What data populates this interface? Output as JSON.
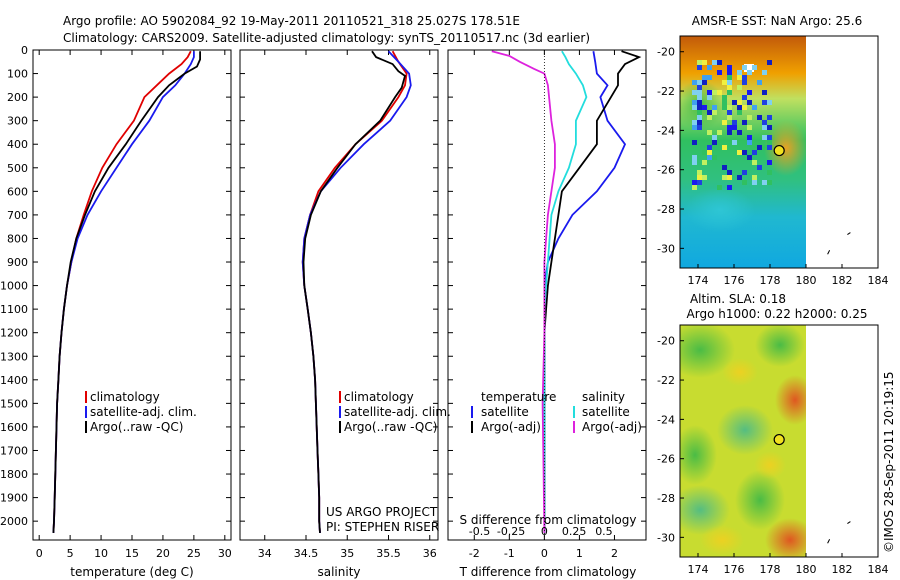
{
  "header": {
    "line1": "Argo profile: AO 5902084_92 19-May-2011 20110521_318 25.027S 178.51E",
    "line2": "Climatology: CARS2009. Satellite-adjusted climatology: synTS_20110517.nc (3d earlier)"
  },
  "credit": "©IMOS 28-Sep-2011 20:19:15",
  "colors": {
    "red": "#e00000",
    "blue": "#1a1aee",
    "black": "#000000",
    "cyan": "#22dddd",
    "magenta": "#dd22dd"
  },
  "chart_data": [
    {
      "type": "line",
      "id": "temperature",
      "xlabel": "temperature (deg C)",
      "ylabel": "",
      "xlim": [
        -1,
        31
      ],
      "ylim": [
        2080,
        0
      ],
      "xticks": [
        0,
        5,
        10,
        15,
        20,
        25,
        30
      ],
      "yticks": [
        0,
        100,
        200,
        300,
        400,
        500,
        600,
        700,
        800,
        900,
        1000,
        1100,
        1200,
        1300,
        1400,
        1500,
        1600,
        1700,
        1800,
        1900,
        2000
      ],
      "legend": [
        "climatology",
        "satellite-adj. clim.",
        "Argo(..raw -QC)"
      ],
      "series": [
        {
          "name": "climatology",
          "color": "red",
          "points": [
            [
              24.5,
              5
            ],
            [
              24,
              30
            ],
            [
              23,
              60
            ],
            [
              21,
              100
            ],
            [
              19,
              150
            ],
            [
              17,
              200
            ],
            [
              15.3,
              300
            ],
            [
              12.5,
              400
            ],
            [
              10.2,
              500
            ],
            [
              8.5,
              600
            ],
            [
              7.2,
              700
            ],
            [
              6,
              800
            ],
            [
              5.2,
              900
            ],
            [
              4.5,
              1000
            ],
            [
              4,
              1100
            ],
            [
              3.6,
              1200
            ],
            [
              3.3,
              1300
            ],
            [
              3.1,
              1400
            ],
            [
              2.9,
              1500
            ],
            [
              2.8,
              1600
            ],
            [
              2.7,
              1700
            ],
            [
              2.6,
              1800
            ],
            [
              2.5,
              1900
            ],
            [
              2.4,
              2000
            ],
            [
              2.3,
              2050
            ]
          ]
        },
        {
          "name": "satellite-adj. clim.",
          "color": "blue",
          "points": [
            [
              25,
              5
            ],
            [
              25,
              30
            ],
            [
              24.5,
              60
            ],
            [
              23.5,
              100
            ],
            [
              22,
              150
            ],
            [
              20,
              200
            ],
            [
              17.8,
              300
            ],
            [
              15,
              400
            ],
            [
              12.5,
              500
            ],
            [
              10,
              600
            ],
            [
              7.8,
              700
            ],
            [
              6.2,
              800
            ],
            [
              5.2,
              900
            ],
            [
              4.5,
              1000
            ],
            [
              4,
              1100
            ],
            [
              3.6,
              1200
            ],
            [
              3.3,
              1300
            ],
            [
              3.1,
              1400
            ],
            [
              2.9,
              1500
            ],
            [
              2.8,
              1600
            ],
            [
              2.7,
              1700
            ],
            [
              2.6,
              1800
            ],
            [
              2.5,
              1900
            ],
            [
              2.4,
              2000
            ],
            [
              2.3,
              2050
            ]
          ]
        },
        {
          "name": "Argo(..raw -QC)",
          "color": "black",
          "points": [
            [
              26,
              5
            ],
            [
              26,
              40
            ],
            [
              25.5,
              70
            ],
            [
              23.5,
              100
            ],
            [
              21,
              150
            ],
            [
              19.2,
              200
            ],
            [
              16.5,
              300
            ],
            [
              14,
              400
            ],
            [
              11.2,
              500
            ],
            [
              9,
              600
            ],
            [
              7.4,
              700
            ],
            [
              6,
              800
            ],
            [
              5.1,
              900
            ],
            [
              4.5,
              1000
            ],
            [
              4,
              1100
            ],
            [
              3.6,
              1200
            ],
            [
              3.3,
              1300
            ],
            [
              3.1,
              1400
            ],
            [
              2.9,
              1500
            ],
            [
              2.8,
              1600
            ],
            [
              2.7,
              1700
            ],
            [
              2.6,
              1800
            ],
            [
              2.5,
              1900
            ],
            [
              2.4,
              2000
            ],
            [
              2.3,
              2050
            ]
          ]
        }
      ]
    },
    {
      "type": "line",
      "id": "salinity",
      "xlabel": "salinity",
      "ylabel": "",
      "xlim": [
        33.7,
        36.1
      ],
      "ylim": [
        2080,
        0
      ],
      "xticks": [
        34,
        34.5,
        35,
        35.5,
        36
      ],
      "legend": [
        "climatology",
        "satellite-adj. clim.",
        "Argo(..raw -QC)"
      ],
      "annotation": [
        "US ARGO PROJECT",
        "PI: STEPHEN RISER"
      ],
      "series": [
        {
          "name": "climatology",
          "color": "red",
          "points": [
            [
              35.55,
              5
            ],
            [
              35.62,
              50
            ],
            [
              35.72,
              100
            ],
            [
              35.7,
              150
            ],
            [
              35.62,
              200
            ],
            [
              35.42,
              300
            ],
            [
              35.1,
              400
            ],
            [
              34.85,
              500
            ],
            [
              34.65,
              600
            ],
            [
              34.55,
              700
            ],
            [
              34.48,
              800
            ],
            [
              34.46,
              900
            ],
            [
              34.48,
              1000
            ],
            [
              34.52,
              1100
            ],
            [
              34.56,
              1200
            ],
            [
              34.59,
              1300
            ],
            [
              34.61,
              1400
            ],
            [
              34.62,
              1500
            ],
            [
              34.63,
              1600
            ],
            [
              34.64,
              1700
            ],
            [
              34.65,
              1800
            ],
            [
              34.66,
              1900
            ],
            [
              34.66,
              2000
            ],
            [
              34.67,
              2050
            ]
          ]
        },
        {
          "name": "satellite-adj. clim.",
          "color": "blue",
          "points": [
            [
              35.5,
              5
            ],
            [
              35.62,
              50
            ],
            [
              35.75,
              100
            ],
            [
              35.77,
              150
            ],
            [
              35.72,
              200
            ],
            [
              35.52,
              300
            ],
            [
              35.2,
              400
            ],
            [
              34.92,
              500
            ],
            [
              34.68,
              600
            ],
            [
              34.55,
              700
            ],
            [
              34.48,
              800
            ],
            [
              34.46,
              900
            ],
            [
              34.48,
              1000
            ],
            [
              34.52,
              1100
            ],
            [
              34.56,
              1200
            ],
            [
              34.59,
              1300
            ],
            [
              34.61,
              1400
            ],
            [
              34.62,
              1500
            ],
            [
              34.63,
              1600
            ],
            [
              34.64,
              1700
            ],
            [
              34.65,
              1800
            ],
            [
              34.66,
              1900
            ],
            [
              34.66,
              2000
            ],
            [
              34.67,
              2050
            ]
          ]
        },
        {
          "name": "Argo(..raw -QC)",
          "color": "black",
          "points": [
            [
              35.3,
              5
            ],
            [
              35.35,
              30
            ],
            [
              35.55,
              60
            ],
            [
              35.62,
              90
            ],
            [
              35.7,
              110
            ],
            [
              35.66,
              160
            ],
            [
              35.58,
              200
            ],
            [
              35.4,
              300
            ],
            [
              35.1,
              400
            ],
            [
              34.88,
              500
            ],
            [
              34.68,
              600
            ],
            [
              34.56,
              700
            ],
            [
              34.49,
              800
            ],
            [
              34.47,
              900
            ],
            [
              34.48,
              1000
            ],
            [
              34.52,
              1100
            ],
            [
              34.56,
              1200
            ],
            [
              34.59,
              1300
            ],
            [
              34.61,
              1400
            ],
            [
              34.62,
              1500
            ],
            [
              34.63,
              1600
            ],
            [
              34.64,
              1700
            ],
            [
              34.65,
              1800
            ],
            [
              34.66,
              1900
            ],
            [
              34.66,
              2000
            ],
            [
              34.67,
              2050
            ]
          ]
        }
      ]
    },
    {
      "type": "line",
      "id": "difference",
      "xlabel": "T difference from climatology",
      "xlabel_top": "S difference from climatology",
      "xlim": [
        -2.75,
        2.9
      ],
      "ylim": [
        2080,
        0
      ],
      "xticks": [
        -2,
        -1,
        0,
        1,
        2
      ],
      "s_ticks": [
        {
          "label": "-0.5",
          "t": -1.85
        },
        {
          "label": "-0.25",
          "t": -0.95
        },
        {
          "label": "0",
          "t": 0
        },
        {
          "label": "0.25",
          "t": 0.85
        },
        {
          "label": "0.5",
          "t": 1.7
        }
      ],
      "legend_temperature": {
        "title": "temperature",
        "entries": [
          "satellite",
          "Argo(-adj)"
        ]
      },
      "legend_salinity": {
        "title": "salinity",
        "entries": [
          "satellite",
          "Argo(-adj)"
        ]
      },
      "series": [
        {
          "name": "satellite",
          "group": "temperature",
          "color": "blue",
          "points": [
            [
              1.4,
              5
            ],
            [
              1.45,
              50
            ],
            [
              1.5,
              100
            ],
            [
              1.8,
              150
            ],
            [
              1.6,
              200
            ],
            [
              1.8,
              300
            ],
            [
              2.3,
              400
            ],
            [
              2.0,
              500
            ],
            [
              1.5,
              600
            ],
            [
              0.8,
              700
            ],
            [
              0.4,
              800
            ],
            [
              0.1,
              900
            ],
            [
              0,
              1000
            ],
            [
              0,
              1200
            ],
            [
              0,
              1500
            ],
            [
              0,
              1800
            ],
            [
              0,
              2050
            ]
          ]
        },
        {
          "name": "Argo(-adj)",
          "group": "temperature",
          "color": "black",
          "points": [
            [
              2.2,
              5
            ],
            [
              2.7,
              30
            ],
            [
              2.3,
              60
            ],
            [
              2.1,
              100
            ],
            [
              2.1,
              150
            ],
            [
              1.9,
              200
            ],
            [
              1.5,
              300
            ],
            [
              1.5,
              400
            ],
            [
              1.0,
              500
            ],
            [
              0.5,
              600
            ],
            [
              0.4,
              700
            ],
            [
              0.3,
              800
            ],
            [
              0.2,
              900
            ],
            [
              0.1,
              1000
            ],
            [
              0.05,
              1100
            ],
            [
              0,
              1200
            ],
            [
              0,
              1500
            ],
            [
              0,
              1800
            ],
            [
              0,
              2050
            ]
          ]
        },
        {
          "name": "satellite",
          "group": "salinity",
          "color": "cyan",
          "points": [
            [
              0.5,
              5
            ],
            [
              0.6,
              30
            ],
            [
              0.7,
              60
            ],
            [
              0.9,
              100
            ],
            [
              1.1,
              150
            ],
            [
              1.2,
              200
            ],
            [
              0.9,
              300
            ],
            [
              0.9,
              400
            ],
            [
              0.7,
              500
            ],
            [
              0.4,
              600
            ],
            [
              0.2,
              700
            ],
            [
              0.15,
              800
            ],
            [
              0.1,
              900
            ],
            [
              0.05,
              1000
            ],
            [
              0,
              1100
            ],
            [
              0,
              1300
            ],
            [
              0,
              1600
            ],
            [
              0,
              2050
            ]
          ]
        },
        {
          "name": "Argo(-adj)",
          "group": "salinity",
          "color": "magenta",
          "points": [
            [
              -1.5,
              5
            ],
            [
              -1.0,
              25
            ],
            [
              -0.7,
              50
            ],
            [
              -0.3,
              80
            ],
            [
              0,
              100
            ],
            [
              0.1,
              150
            ],
            [
              0.2,
              300
            ],
            [
              0.3,
              400
            ],
            [
              0.3,
              500
            ],
            [
              0.2,
              600
            ],
            [
              0.1,
              700
            ],
            [
              0.05,
              800
            ],
            [
              0,
              900
            ],
            [
              0,
              1200
            ],
            [
              -0.05,
              1500
            ],
            [
              -0.03,
              1700
            ],
            [
              0,
              2050
            ]
          ]
        }
      ]
    }
  ],
  "maps": [
    {
      "id": "sst",
      "title": "AMSR-E SST: NaN Argo: 25.6",
      "xlim": [
        173,
        184
      ],
      "ylim": [
        -31,
        -19.2
      ],
      "xticks": [
        174,
        176,
        178,
        180,
        182,
        184
      ],
      "yticks": [
        -20,
        -22,
        -24,
        -26,
        -28,
        -30
      ],
      "marker": {
        "lon": 178.51,
        "lat": -25.027
      }
    },
    {
      "id": "sla",
      "title1": "Altim. SLA: 0.18",
      "title2": "Argo h1000: 0.22 h2000: 0.25",
      "xlim": [
        173,
        184
      ],
      "ylim": [
        -31,
        -19.2
      ],
      "xticks": [
        174,
        176,
        178,
        180,
        182,
        184
      ],
      "yticks": [
        -20,
        -22,
        -24,
        -26,
        -28,
        -30
      ],
      "marker": {
        "lon": 178.51,
        "lat": -25.027
      }
    }
  ]
}
